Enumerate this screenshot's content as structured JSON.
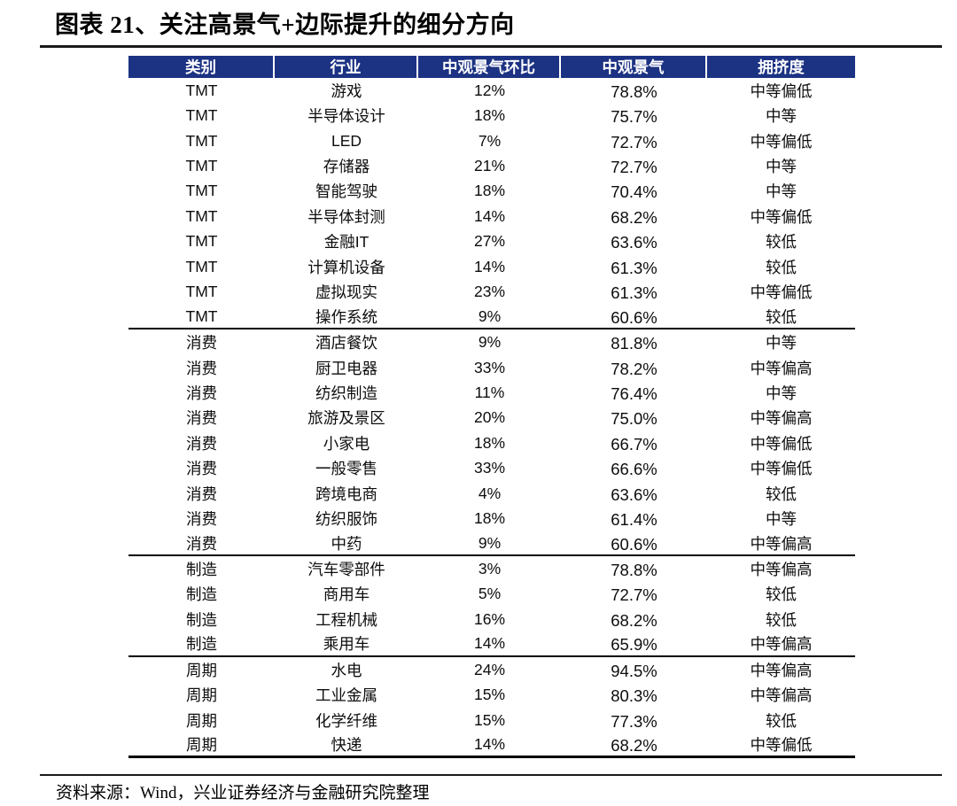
{
  "title": "图表 21、关注高景气+边际提升的细分方向",
  "source": "资料来源：Wind，兴业证券经济与金融研究院整理",
  "colors": {
    "header_bg": "#1c3283",
    "header_text": "#ffffff",
    "rule": "#1a1a1a",
    "body_text": "#0d0d0d"
  },
  "table": {
    "columns": [
      "类别",
      "行业",
      "中观景气环比",
      "中观景气",
      "拥挤度"
    ],
    "rows": [
      [
        "TMT",
        "游戏",
        "12%",
        "78.8%",
        "中等偏低"
      ],
      [
        "TMT",
        "半导体设计",
        "18%",
        "75.7%",
        "中等"
      ],
      [
        "TMT",
        "LED",
        "7%",
        "72.7%",
        "中等偏低"
      ],
      [
        "TMT",
        "存储器",
        "21%",
        "72.7%",
        "中等"
      ],
      [
        "TMT",
        "智能驾驶",
        "18%",
        "70.4%",
        "中等"
      ],
      [
        "TMT",
        "半导体封测",
        "14%",
        "68.2%",
        "中等偏低"
      ],
      [
        "TMT",
        "金融IT",
        "27%",
        "63.6%",
        "较低"
      ],
      [
        "TMT",
        "计算机设备",
        "14%",
        "61.3%",
        "较低"
      ],
      [
        "TMT",
        "虚拟现实",
        "23%",
        "61.3%",
        "中等偏低"
      ],
      [
        "TMT",
        "操作系统",
        "9%",
        "60.6%",
        "较低"
      ],
      [
        "消费",
        "酒店餐饮",
        "9%",
        "81.8%",
        "中等"
      ],
      [
        "消费",
        "厨卫电器",
        "33%",
        "78.2%",
        "中等偏高"
      ],
      [
        "消费",
        "纺织制造",
        "11%",
        "76.4%",
        "中等"
      ],
      [
        "消费",
        "旅游及景区",
        "20%",
        "75.0%",
        "中等偏高"
      ],
      [
        "消费",
        "小家电",
        "18%",
        "66.7%",
        "中等偏低"
      ],
      [
        "消费",
        "一般零售",
        "33%",
        "66.6%",
        "中等偏低"
      ],
      [
        "消费",
        "跨境电商",
        "4%",
        "63.6%",
        "较低"
      ],
      [
        "消费",
        "纺织服饰",
        "18%",
        "61.4%",
        "中等"
      ],
      [
        "消费",
        "中药",
        "9%",
        "60.6%",
        "中等偏高"
      ],
      [
        "制造",
        "汽车零部件",
        "3%",
        "78.8%",
        "中等偏高"
      ],
      [
        "制造",
        "商用车",
        "5%",
        "72.7%",
        "较低"
      ],
      [
        "制造",
        "工程机械",
        "16%",
        "68.2%",
        "较低"
      ],
      [
        "制造",
        "乘用车",
        "14%",
        "65.9%",
        "中等偏高"
      ],
      [
        "周期",
        "水电",
        "24%",
        "94.5%",
        "中等偏高"
      ],
      [
        "周期",
        "工业金属",
        "15%",
        "80.3%",
        "中等偏高"
      ],
      [
        "周期",
        "化学纤维",
        "15%",
        "77.3%",
        "较低"
      ],
      [
        "周期",
        "快递",
        "14%",
        "68.2%",
        "中等偏低"
      ]
    ],
    "group_breaks_after": [
      9,
      18,
      22,
      26
    ],
    "groups": [
      "TMT",
      "消费",
      "制造",
      "周期"
    ]
  }
}
